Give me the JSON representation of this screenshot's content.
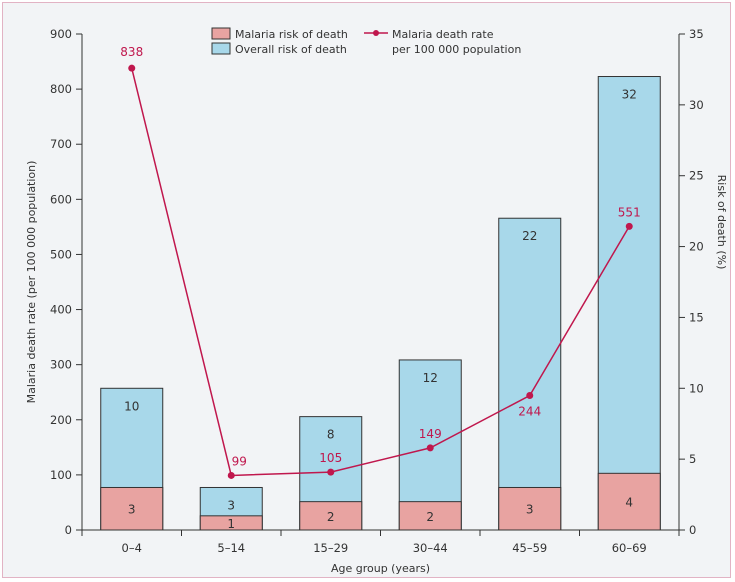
{
  "chart_data": {
    "type": "bar",
    "categories": [
      "0–4",
      "5–14",
      "15–29",
      "30–44",
      "45–59",
      "60–69"
    ],
    "series": [
      {
        "name": "Malaria risk of death",
        "kind": "stacked-bar-bottom",
        "axis": "right",
        "values": [
          3,
          1,
          2,
          2,
          3,
          4
        ],
        "labels": [
          "3",
          "1",
          "2",
          "2",
          "3",
          "4"
        ],
        "color": "#e8a3a1"
      },
      {
        "name": "Overall risk of death",
        "kind": "stacked-bar-total",
        "axis": "right",
        "values": [
          10,
          3,
          8,
          12,
          22,
          32
        ],
        "labels": [
          "10",
          "3",
          "8",
          "12",
          "22",
          "32"
        ],
        "color": "#a8d8ea"
      },
      {
        "name": "Malaria death rate per 100 000 population",
        "kind": "line",
        "axis": "left",
        "values": [
          838,
          99,
          105,
          149,
          244,
          551
        ],
        "labels": [
          "838",
          "99",
          "105",
          "149",
          "244",
          "551"
        ],
        "color": "#c0174d"
      }
    ],
    "legend": [
      {
        "label": "Malaria risk of death",
        "color": "#e8a3a1",
        "kind": "box"
      },
      {
        "label": "Overall risk of death",
        "color": "#a8d8ea",
        "kind": "box"
      },
      {
        "label": "Malaria death rate\nper 100 000 population",
        "color": "#c0174d",
        "kind": "line"
      }
    ],
    "legend_position": "top-center",
    "xlabel": "Age group (years)",
    "ylabel_left": "Malaria death rate (per 100 000 population)",
    "ylabel_right": "Risk of death (%)",
    "ylim_left": [
      0,
      900
    ],
    "yticks_left": [
      0,
      100,
      200,
      300,
      400,
      500,
      600,
      700,
      800,
      900
    ],
    "ylim_right": [
      0,
      35
    ],
    "yticks_right": [
      0,
      5,
      10,
      15,
      20,
      25,
      30,
      35
    ],
    "grid": false
  }
}
